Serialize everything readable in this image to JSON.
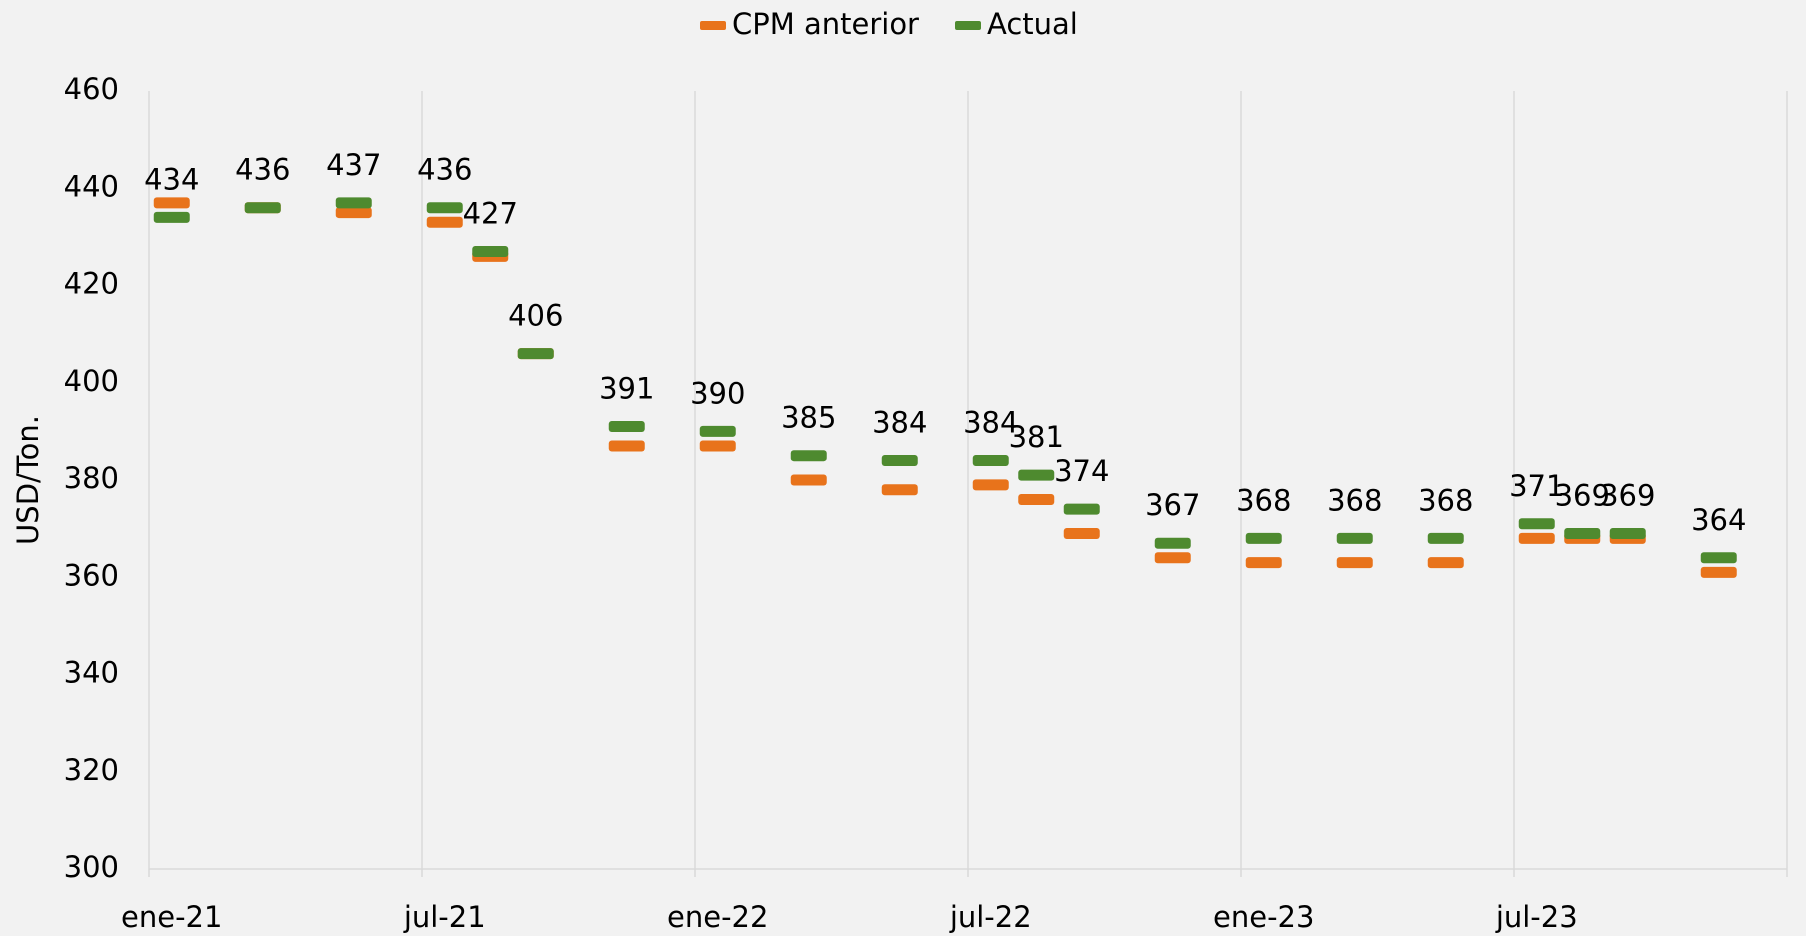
{
  "chart_data": {
    "type": "line",
    "markers_only": true,
    "y_axis_label": "USD/Ton.",
    "categories": [
      "ene-21",
      null,
      null,
      null,
      null,
      null,
      "jul-21",
      null,
      null,
      null,
      null,
      null,
      "ene-22",
      null,
      null,
      null,
      null,
      null,
      "jul-22",
      null,
      null,
      null,
      null,
      null,
      "ene-23",
      null,
      null,
      null,
      null,
      null,
      "jul-23",
      null,
      null,
      null,
      null,
      null
    ],
    "series": [
      {
        "name": "CPM anterior",
        "color": "#e8731b",
        "values": [
          437,
          null,
          436,
          null,
          435,
          null,
          433,
          426,
          406,
          null,
          387,
          null,
          387,
          null,
          380,
          null,
          378,
          null,
          379,
          376,
          369,
          null,
          364,
          null,
          363,
          null,
          363,
          null,
          363,
          null,
          368,
          368,
          368,
          null,
          361,
          null
        ]
      },
      {
        "name": "Actual",
        "color": "#4e8a2f",
        "data_labels": true,
        "values": [
          434,
          null,
          436,
          null,
          437,
          null,
          436,
          427,
          406,
          null,
          391,
          null,
          390,
          null,
          385,
          null,
          384,
          null,
          384,
          381,
          374,
          null,
          367,
          null,
          368,
          null,
          368,
          null,
          368,
          null,
          371,
          369,
          369,
          null,
          364,
          null
        ]
      }
    ],
    "ylim": [
      300,
      460
    ],
    "yticks": [
      300,
      320,
      340,
      360,
      380,
      400,
      420,
      440,
      460
    ],
    "grid": "x",
    "legend": "top"
  }
}
